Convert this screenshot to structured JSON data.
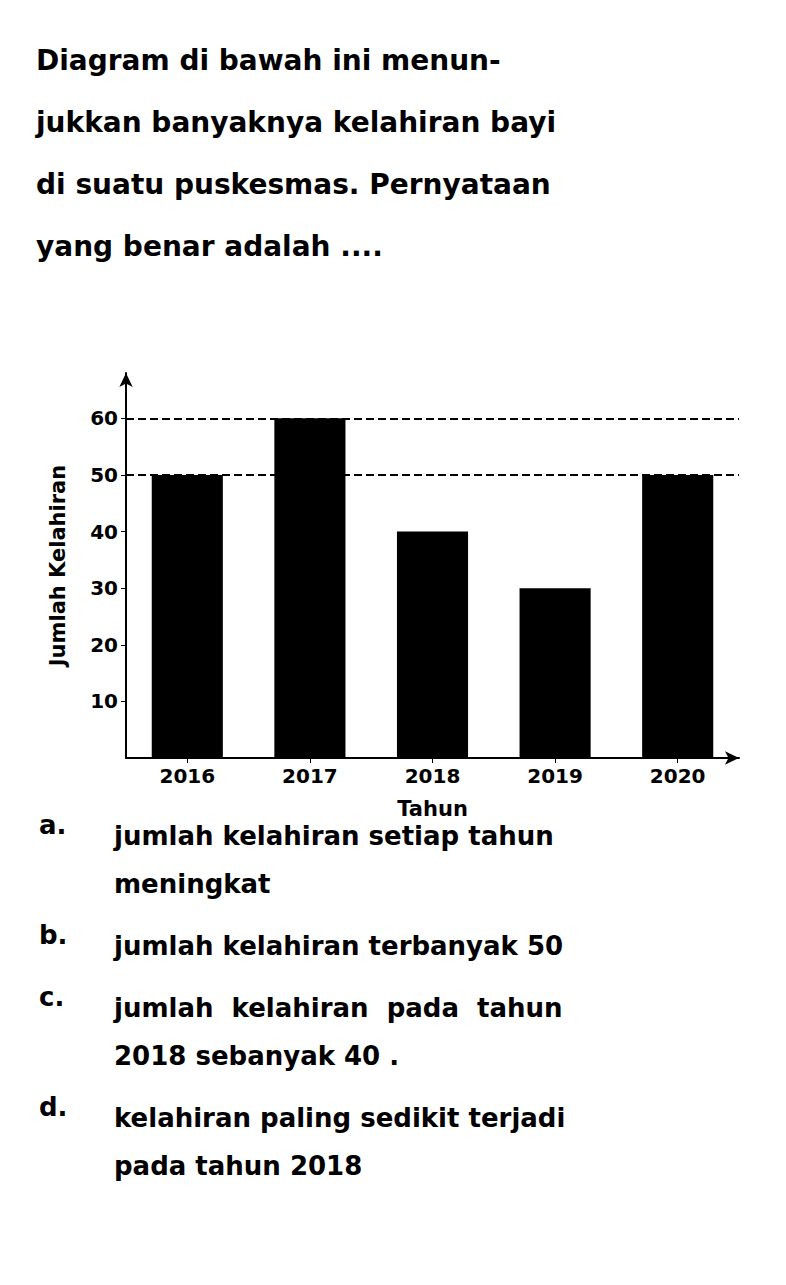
{
  "chart_data": {
    "type": "bar",
    "title": "Diagram di bawah ini menun-\njukkan banyaknya kelahiran bayi\ndi suatu puskesmas. Pernyataan\nyang benar adalah ....",
    "categories": [
      "2016",
      "2017",
      "2018",
      "2019",
      "2020"
    ],
    "values": [
      50,
      60,
      40,
      30,
      50
    ],
    "color": "#000000",
    "xlabel": "Tahun",
    "ylabel": "Jumlah Kelahiran",
    "ylim": [
      0,
      68
    ],
    "yticks": [
      10,
      20,
      30,
      40,
      50,
      60
    ],
    "grid": false,
    "hlines": [
      60,
      50
    ],
    "annotations": [
      {
        "label": "a.",
        "text": "jumlah kelahiran setiap tahun\nmeningkat"
      },
      {
        "label": "b.",
        "text": "jumlah kelahiran terbanyak 50"
      },
      {
        "label": "c.",
        "text": "jumlah  kelahiran  pada  tahun\n2018 sebanyak 40 ."
      },
      {
        "label": "d.",
        "text": "kelahiran paling sedikit terjadi\npada tahun 2018"
      }
    ]
  }
}
